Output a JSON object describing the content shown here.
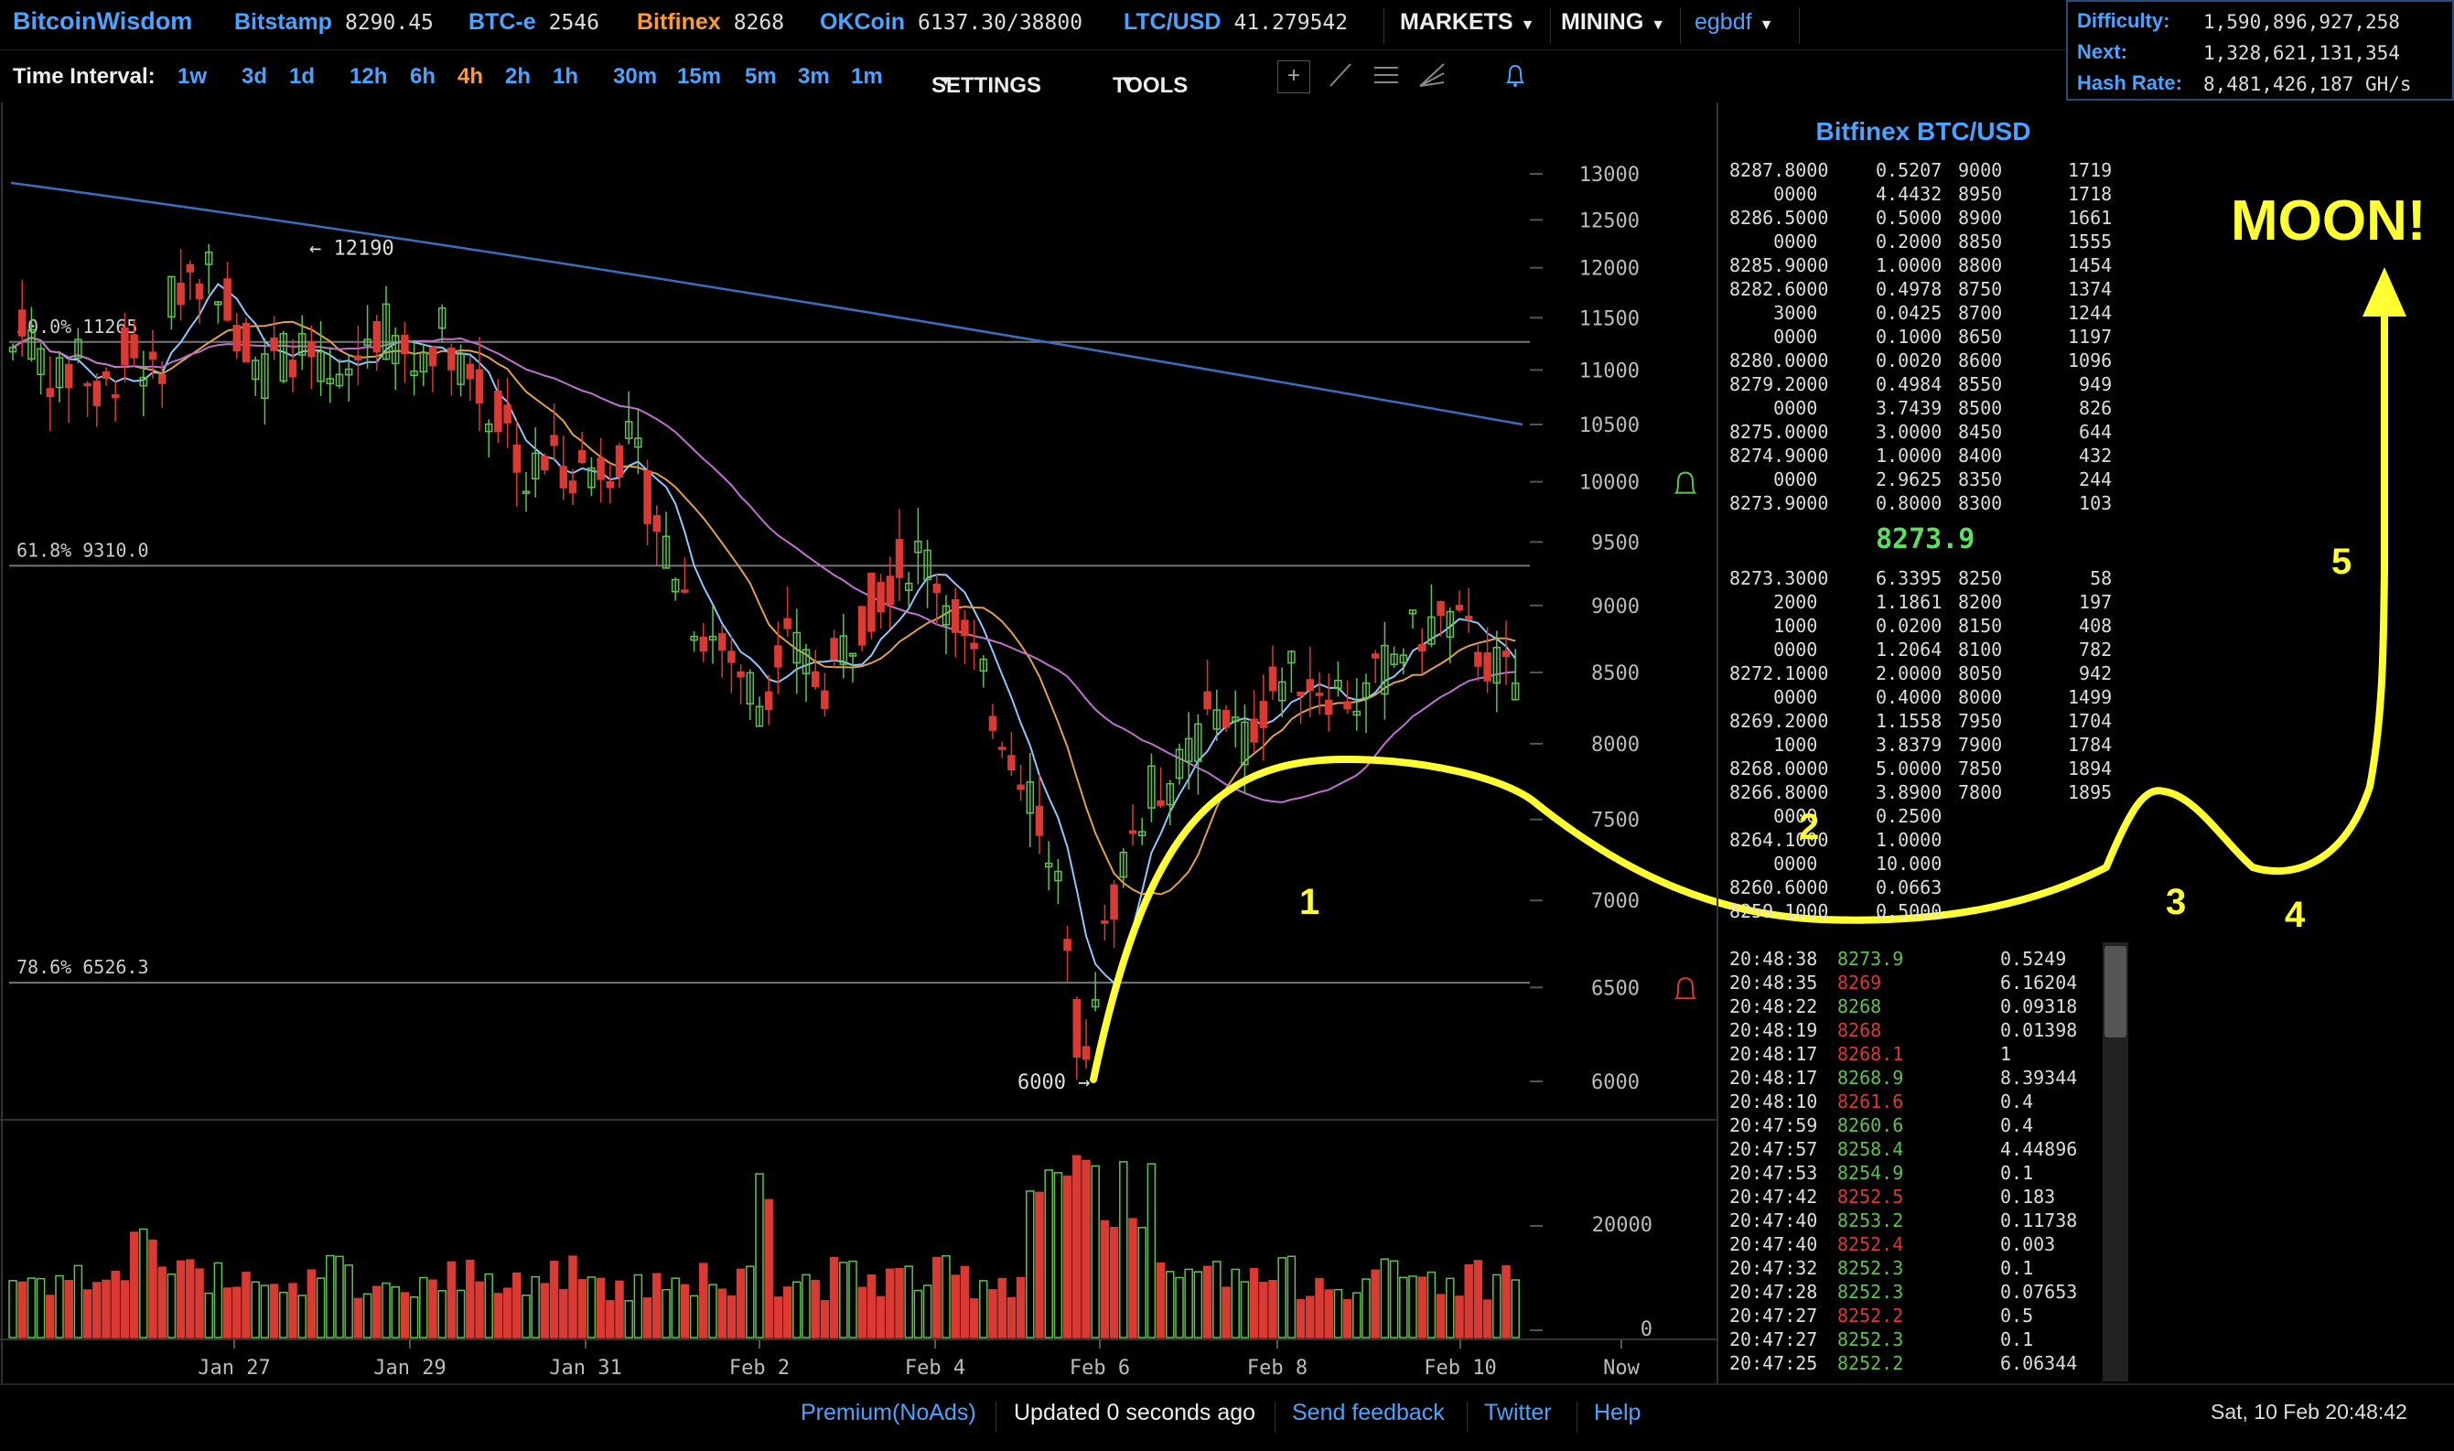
{
  "topbar": {
    "brand": "BitcoinWisdom",
    "markets": [
      {
        "name": "Bitstamp",
        "price": "8290.45",
        "color": "#4aa3ff"
      },
      {
        "name": "BTC-e",
        "price": "2546",
        "color": "#4aa3ff"
      },
      {
        "name": "Bitfinex",
        "price": "8268",
        "color": "#ff9a3c"
      },
      {
        "name": "OKCoin",
        "price": "6137.30/38800",
        "color": "#4aa3ff"
      },
      {
        "name": "LTC/USD",
        "price": "41.279542",
        "color": "#4aa3ff"
      }
    ],
    "menu_markets": "MARKETS",
    "menu_mining": "MINING",
    "user": "egbdf"
  },
  "stats": {
    "difficulty_label": "Difficulty:",
    "difficulty": "1,590,896,927,258",
    "next_label": "Next:",
    "next": "1,328,621,131,354",
    "hashrate_label": "Hash Rate:",
    "hashrate": "8,481,426,187 GH/s"
  },
  "toolbar": {
    "time_label": "Time Interval:",
    "intervals": [
      "1w",
      "3d",
      "1d",
      "12h",
      "6h",
      "4h",
      "2h",
      "1h",
      "30m",
      "15m",
      "5m",
      "3m",
      "1m"
    ],
    "active_interval": "4h",
    "settings": "SETTINGS",
    "tools": "TOOLS"
  },
  "chart_data": {
    "type": "candlestick",
    "price_ticks": [
      13000,
      12500,
      12000,
      11500,
      11000,
      10500,
      10000,
      9500,
      9000,
      8500,
      8000,
      7500,
      7000,
      6500,
      6000
    ],
    "volume_ticks": [
      "20000",
      "0"
    ],
    "x_labels": [
      "Jan 27",
      "Jan 29",
      "Jan 31",
      "Feb 2",
      "Feb 4",
      "Feb 6",
      "Feb 8",
      "Feb 10",
      "Now"
    ],
    "fib_levels": [
      {
        "label": "50.0% 11265",
        "value": 11265
      },
      {
        "label": "61.8% 9310.0",
        "value": 9310
      },
      {
        "label": "78.6% 6526.3",
        "value": 6526.3
      }
    ],
    "high_marker": {
      "label": "← 12190",
      "value": 12190
    },
    "low_marker": {
      "label": "6000 →",
      "value": 6000
    },
    "colors": {
      "up": "#5fc24f",
      "down": "#d93a34"
    }
  },
  "orderbook": {
    "title": "Bitfinex BTC/USD",
    "asks": [
      [
        "8287.8000",
        "0.5207",
        "9000",
        "1719"
      ],
      [
        "    0000",
        "4.4432",
        "8950",
        "1718"
      ],
      [
        "8286.5000",
        "0.5000",
        "8900",
        "1661"
      ],
      [
        "    0000",
        "0.2000",
        "8850",
        "1555"
      ],
      [
        "8285.9000",
        "1.0000",
        "8800",
        "1454"
      ],
      [
        "8282.6000",
        "0.4978",
        "8750",
        "1374"
      ],
      [
        "    3000",
        "0.0425",
        "8700",
        "1244"
      ],
      [
        "    0000",
        "0.1000",
        "8650",
        "1197"
      ],
      [
        "8280.0000",
        "0.0020",
        "8600",
        "1096"
      ],
      [
        "8279.2000",
        "0.4984",
        "8550",
        " 949"
      ],
      [
        "    0000",
        "3.7439",
        "8500",
        " 826"
      ],
      [
        "8275.0000",
        "3.0000",
        "8450",
        " 644"
      ],
      [
        "8274.9000",
        "1.0000",
        "8400",
        " 432"
      ],
      [
        "    0000",
        "2.9625",
        "8350",
        " 244"
      ],
      [
        "8273.9000",
        "0.8000",
        "8300",
        " 103"
      ]
    ],
    "mid": "8273.9",
    "bids": [
      [
        "8273.3000",
        "6.3395",
        "8250",
        "  58"
      ],
      [
        "    2000",
        "1.1861",
        "8200",
        " 197"
      ],
      [
        "    1000",
        "0.0200",
        "8150",
        " 408"
      ],
      [
        "    0000",
        "1.2064",
        "8100",
        " 782"
      ],
      [
        "8272.1000",
        "2.0000",
        "8050",
        " 942"
      ],
      [
        "    0000",
        "0.4000",
        "8000",
        "1499"
      ],
      [
        "8269.2000",
        "1.1558",
        "7950",
        "1704"
      ],
      [
        "    1000",
        "3.8379",
        "7900",
        "1784"
      ],
      [
        "8268.0000",
        "5.0000",
        "7850",
        "1894"
      ],
      [
        "8266.8000",
        "3.8900",
        "7800",
        "1895"
      ],
      [
        "    0000",
        "0.2500",
        "",
        ""
      ],
      [
        "8264.1000",
        "1.0000",
        "",
        ""
      ],
      [
        "    0000",
        "10.000",
        "",
        ""
      ],
      [
        "8260.6000",
        "0.0663",
        "",
        ""
      ],
      [
        "8259.1000",
        "0.5000",
        "",
        ""
      ]
    ]
  },
  "trades": [
    [
      "20:48:38",
      "8273.9",
      "0.5249",
      "up"
    ],
    [
      "20:48:35",
      "8269",
      "6.16204",
      "down"
    ],
    [
      "20:48:22",
      "8268",
      "0.09318",
      "up"
    ],
    [
      "20:48:19",
      "8268",
      "0.01398",
      "down"
    ],
    [
      "20:48:17",
      "8268.1",
      "1",
      "down"
    ],
    [
      "20:48:17",
      "8268.9",
      "8.39344",
      "up"
    ],
    [
      "20:48:10",
      "8261.6",
      "0.4",
      "down"
    ],
    [
      "20:47:59",
      "8260.6",
      "0.4",
      "up"
    ],
    [
      "20:47:57",
      "8258.4",
      "4.44896",
      "up"
    ],
    [
      "20:47:53",
      "8254.9",
      "0.1",
      "up"
    ],
    [
      "20:47:42",
      "8252.5",
      "0.183",
      "down"
    ],
    [
      "20:47:40",
      "8253.2",
      "0.11738",
      "up"
    ],
    [
      "20:47:40",
      "8252.4",
      "0.003",
      "down"
    ],
    [
      "20:47:32",
      "8252.3",
      "0.1",
      "up"
    ],
    [
      "20:47:28",
      "8252.3",
      "0.07653",
      "up"
    ],
    [
      "20:47:27",
      "8252.2",
      "0.5",
      "down"
    ],
    [
      "20:47:27",
      "8252.3",
      "0.1",
      "up"
    ],
    [
      "20:47:25",
      "8252.2",
      "6.06344",
      "up"
    ]
  ],
  "annotations": {
    "moon": "MOON!",
    "steps": [
      "1",
      "2",
      "3",
      "4",
      "5"
    ]
  },
  "footer": {
    "premium": "Premium(NoAds)",
    "updated": "Updated 0 seconds ago",
    "feedback": "Send feedback",
    "twitter": "Twitter",
    "help": "Help",
    "datetime": "Sat, 10 Feb 20:48:42"
  }
}
